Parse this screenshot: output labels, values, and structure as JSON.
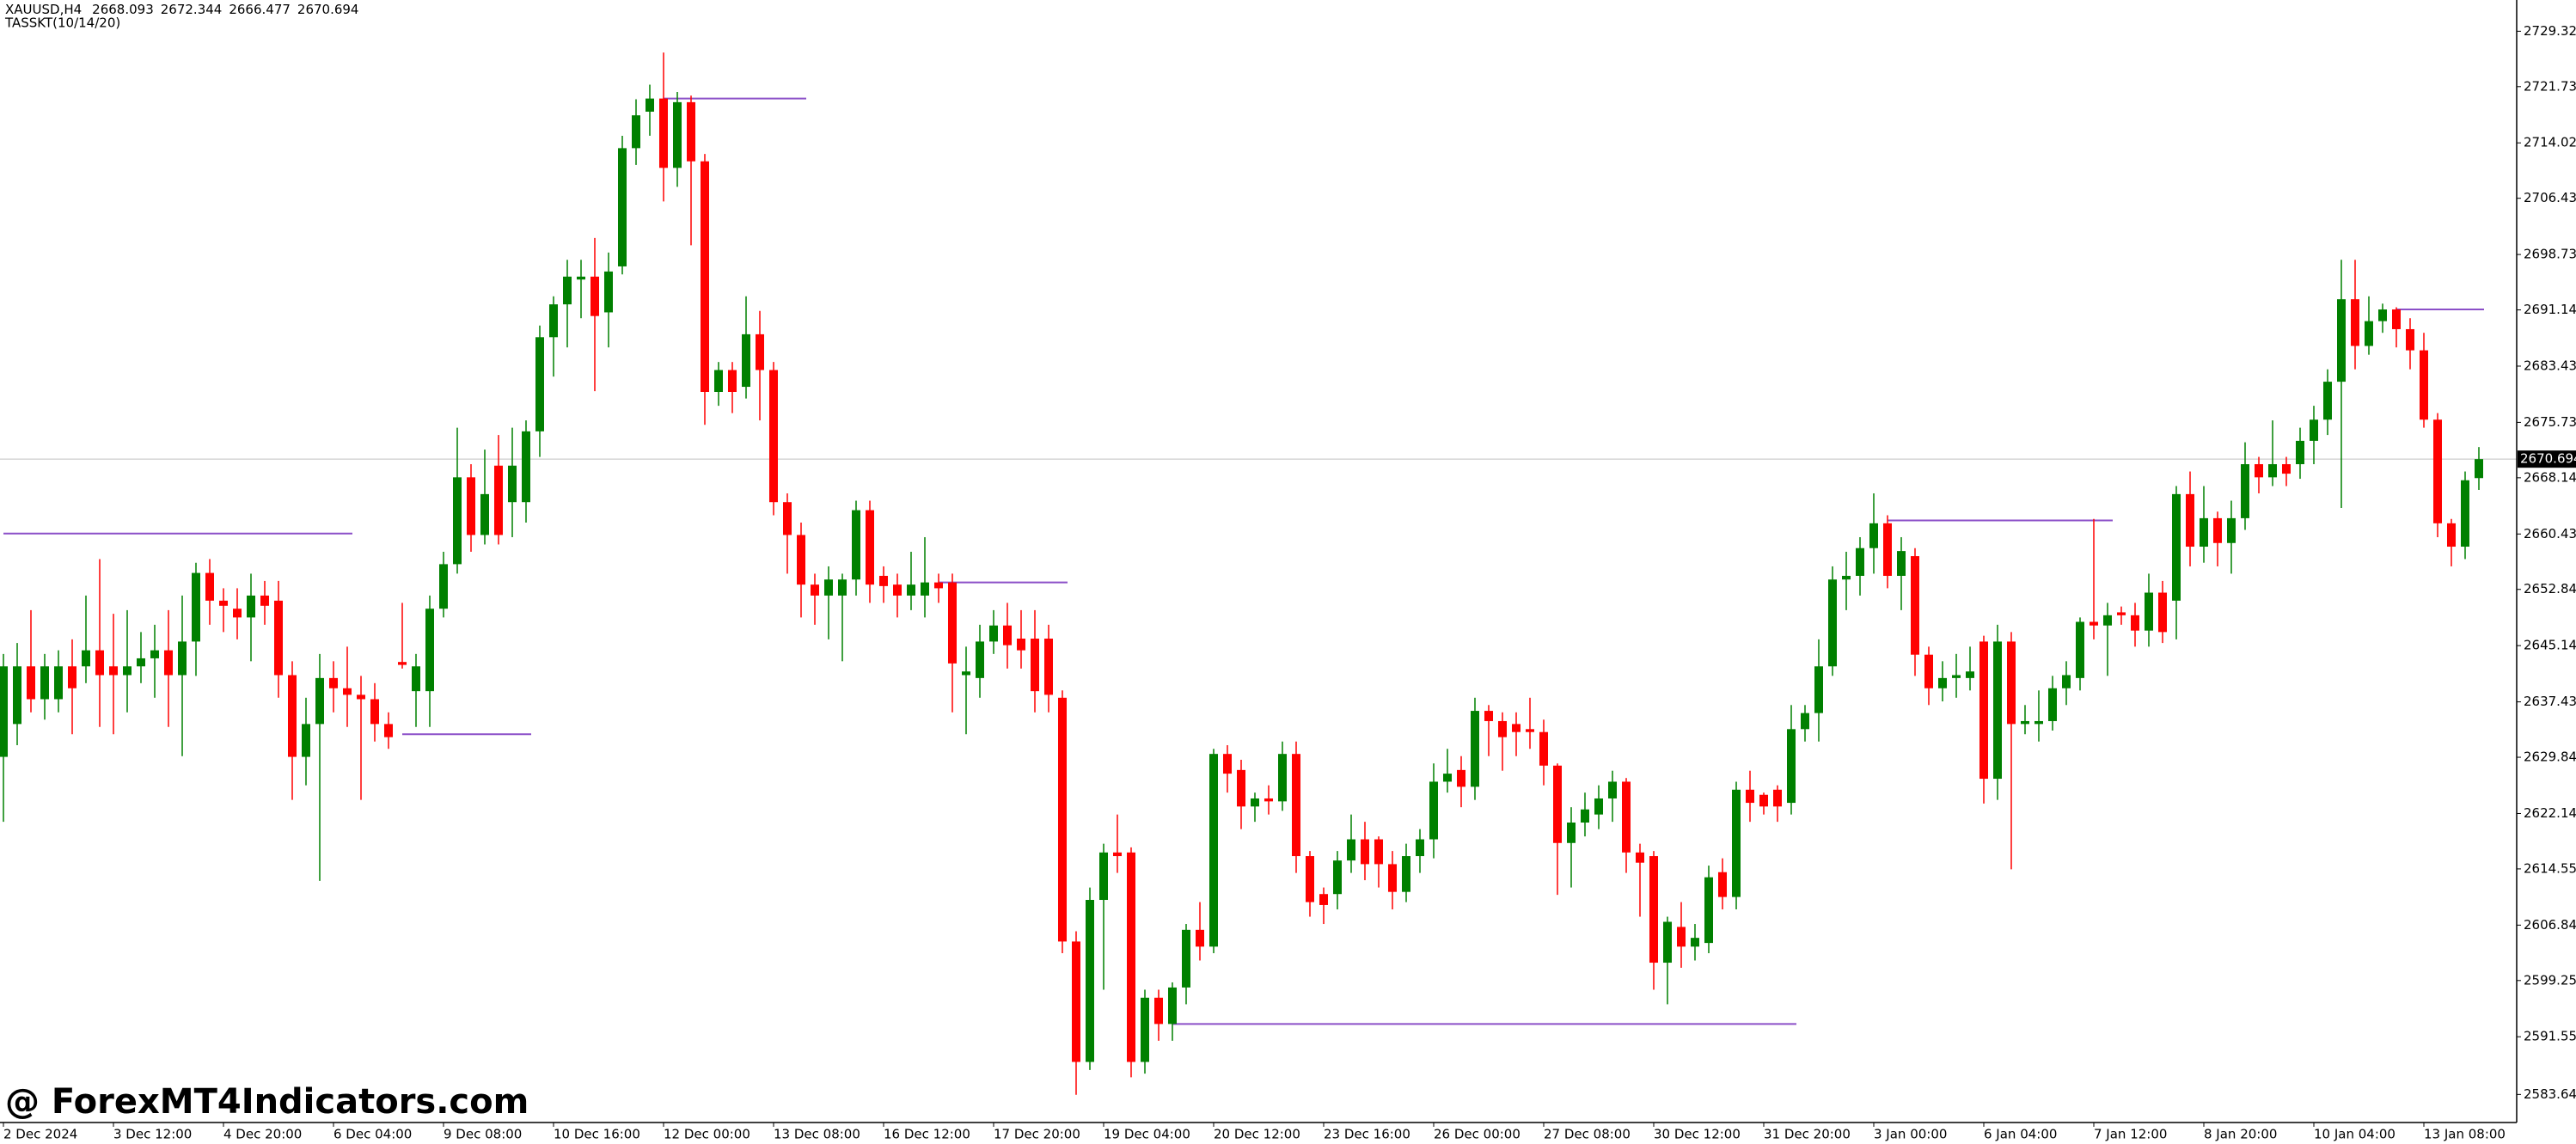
{
  "chart_data": {
    "type": "candlestick",
    "symbol": "XAUUSD,H4",
    "indicator": "TASSKT(10/14/20)",
    "watermark": "@ ForexMT4Indicators.com",
    "up_color": "#008000",
    "down_color": "#ff0000",
    "level_color": "#8b4fc8",
    "bid_line_color": "#c0c0c0",
    "ylim": [
      2579.8,
      2733.6
    ],
    "yticks": [
      {
        "value": 2729.32,
        "label": "2729.320"
      },
      {
        "value": 2721.73,
        "label": "2721.730"
      },
      {
        "value": 2714.025,
        "label": "2714.025"
      },
      {
        "value": 2706.435,
        "label": "2706.435"
      },
      {
        "value": 2698.73,
        "label": "2698.730"
      },
      {
        "value": 2691.14,
        "label": "2691.140"
      },
      {
        "value": 2683.435,
        "label": "2683.435"
      },
      {
        "value": 2675.73,
        "label": "2675.730"
      },
      {
        "value": 2668.14,
        "label": "2668.140"
      },
      {
        "value": 2660.435,
        "label": "2660.435"
      },
      {
        "value": 2652.845,
        "label": "2652.845"
      },
      {
        "value": 2645.14,
        "label": "2645.140"
      },
      {
        "value": 2637.435,
        "label": "2637.435"
      },
      {
        "value": 2629.845,
        "label": "2629.845"
      },
      {
        "value": 2622.14,
        "label": "2622.140"
      },
      {
        "value": 2614.55,
        "label": "2614.550"
      },
      {
        "value": 2606.845,
        "label": "2606.845"
      },
      {
        "value": 2599.255,
        "label": "2599.255"
      },
      {
        "value": 2591.55,
        "label": "2591.550"
      },
      {
        "value": 2583.645,
        "label": "2583.645"
      }
    ],
    "categories": [
      "2 Dec 2024",
      null,
      null,
      null,
      null,
      null,
      null,
      null,
      "3 Dec 12:00",
      null,
      null,
      null,
      null,
      null,
      null,
      null,
      "4 Dec 20:00",
      null,
      null,
      null,
      null,
      null,
      null,
      null,
      "6 Dec 04:00",
      null,
      null,
      null,
      null,
      null,
      null,
      null,
      "9 Dec 08:00",
      null,
      null,
      null,
      null,
      null,
      null,
      null,
      "10 Dec 16:00",
      null,
      null,
      null,
      null,
      null,
      null,
      null,
      "12 Dec 00:00",
      null,
      null,
      null,
      null,
      null,
      null,
      null,
      "13 Dec 08:00",
      null,
      null,
      null,
      null,
      null,
      null,
      null,
      "16 Dec 12:00",
      null,
      null,
      null,
      null,
      null,
      null,
      null,
      "17 Dec 20:00",
      null,
      null,
      null,
      null,
      null,
      null,
      null,
      "19 Dec 04:00",
      null,
      null,
      null,
      null,
      null,
      null,
      null,
      "20 Dec 12:00",
      null,
      null,
      null,
      null,
      null,
      null,
      null,
      "23 Dec 16:00",
      null,
      null,
      null,
      null,
      null,
      null,
      null,
      "26 Dec 00:00",
      null,
      null,
      null,
      null,
      null,
      null,
      null,
      "27 Dec 08:00",
      null,
      null,
      null,
      null,
      null,
      null,
      null,
      "30 Dec 12:00",
      null,
      null,
      null,
      null,
      null,
      null,
      null,
      "31 Dec 20:00",
      null,
      null,
      null,
      null,
      null,
      null,
      null,
      "3 Jan 00:00",
      null,
      null,
      null,
      null,
      null,
      null,
      null,
      "6 Jan 04:00",
      null,
      null,
      null,
      null,
      null,
      null,
      null,
      "7 Jan 12:00",
      null,
      null,
      null,
      null,
      null,
      null,
      null,
      "8 Jan 20:00",
      null,
      null,
      null,
      null,
      null,
      null,
      null,
      "10 Jan 04:00",
      null,
      null,
      null,
      null,
      null,
      null,
      null,
      "13 Jan 08:00",
      null,
      null,
      null,
      null
    ],
    "candles": [
      [
        2629.9,
        2644,
        2621,
        2642.3
      ],
      [
        2634.4,
        2645.5,
        2631.5,
        2642.3
      ],
      [
        2642.3,
        2650,
        2636,
        2637.8
      ],
      [
        2637.8,
        2644,
        2635,
        2642.3
      ],
      [
        2637.8,
        2644.5,
        2636,
        2642.3
      ],
      [
        2642.3,
        2646,
        2633,
        2639.3
      ],
      [
        2642.3,
        2652,
        2640,
        2644.5
      ],
      [
        2644.5,
        2657,
        2634,
        2641.1
      ],
      [
        2642.3,
        2649.5,
        2633,
        2641.1
      ],
      [
        2641.1,
        2650,
        2636,
        2642.3
      ],
      [
        2642.3,
        2647,
        2640,
        2643.4
      ],
      [
        2643.4,
        2648,
        2638,
        2644.5
      ],
      [
        2644.5,
        2650,
        2634,
        2641.1
      ],
      [
        2641.1,
        2652,
        2630,
        2645.7
      ],
      [
        2645.7,
        2656.5,
        2641,
        2655.1
      ],
      [
        2655.1,
        2657,
        2648,
        2651.3
      ],
      [
        2651.3,
        2653,
        2647,
        2650.6
      ],
      [
        2650.2,
        2653,
        2646,
        2649.0
      ],
      [
        2649.0,
        2655,
        2643,
        2652.0
      ],
      [
        2652.0,
        2654,
        2648,
        2650.6
      ],
      [
        2651.3,
        2654,
        2638,
        2641.1
      ],
      [
        2641.1,
        2643,
        2624,
        2629.9
      ],
      [
        2629.9,
        2638,
        2626,
        2634.4
      ],
      [
        2634.4,
        2644,
        2612.9,
        2640.7
      ],
      [
        2640.7,
        2643,
        2636,
        2639.3
      ],
      [
        2639.3,
        2645,
        2634,
        2638.4
      ],
      [
        2638.4,
        2641,
        2624,
        2637.8
      ],
      [
        2637.8,
        2640,
        2632,
        2634.4
      ],
      [
        2634.4,
        2636,
        2631,
        2632.6
      ],
      [
        2642.9,
        2651,
        2642,
        2642.5
      ],
      [
        2638.9,
        2644,
        2634,
        2642.3
      ],
      [
        2638.9,
        2652,
        2634,
        2650.2
      ],
      [
        2650.2,
        2658,
        2649,
        2656.3
      ],
      [
        2656.3,
        2675,
        2655,
        2668.2
      ],
      [
        2668.2,
        2670,
        2658,
        2660.3
      ],
      [
        2660.3,
        2672,
        2659,
        2665.9
      ],
      [
        2669.8,
        2674,
        2659,
        2660.3
      ],
      [
        2664.8,
        2675,
        2660,
        2669.8
      ],
      [
        2664.8,
        2676,
        2662,
        2674.5
      ],
      [
        2674.5,
        2689,
        2671,
        2687.4
      ],
      [
        2687.4,
        2693,
        2682,
        2691.9
      ],
      [
        2691.9,
        2698,
        2686,
        2695.7
      ],
      [
        2695.3,
        2698,
        2690,
        2695.7
      ],
      [
        2695.7,
        2701,
        2680,
        2690.3
      ],
      [
        2690.8,
        2699,
        2686,
        2696.4
      ],
      [
        2697.1,
        2715,
        2696,
        2713.3
      ],
      [
        2713.3,
        2720,
        2711,
        2717.8
      ],
      [
        2718.3,
        2722,
        2715,
        2720.1
      ],
      [
        2720.1,
        2726.4,
        2706,
        2710.6
      ],
      [
        2710.6,
        2721,
        2708,
        2719.6
      ],
      [
        2719.6,
        2720.5,
        2700,
        2711.5
      ],
      [
        2711.5,
        2712.5,
        2675.4,
        2679.9
      ],
      [
        2679.9,
        2684,
        2678,
        2682.9
      ],
      [
        2682.9,
        2684,
        2677,
        2679.9
      ],
      [
        2680.6,
        2693,
        2679,
        2687.8
      ],
      [
        2687.8,
        2691,
        2676,
        2682.9
      ],
      [
        2682.9,
        2684,
        2663,
        2664.8
      ],
      [
        2664.8,
        2666,
        2655,
        2660.3
      ],
      [
        2660.3,
        2662,
        2649,
        2653.5
      ],
      [
        2653.5,
        2655,
        2648,
        2652.0
      ],
      [
        2652.0,
        2656,
        2646,
        2654.2
      ],
      [
        2652.0,
        2655,
        2643,
        2654.2
      ],
      [
        2654.2,
        2665,
        2652,
        2663.7
      ],
      [
        2663.7,
        2665,
        2651,
        2653.5
      ],
      [
        2654.7,
        2656,
        2651,
        2653.3
      ],
      [
        2653.5,
        2655,
        2649,
        2652.0
      ],
      [
        2652.0,
        2658,
        2650,
        2653.5
      ],
      [
        2652.0,
        2660,
        2649,
        2653.8
      ],
      [
        2653.8,
        2655,
        2651,
        2653.0
      ],
      [
        2653.8,
        2655,
        2636,
        2642.7
      ],
      [
        2641.1,
        2645,
        2633,
        2641.6
      ],
      [
        2640.7,
        2648,
        2638,
        2645.7
      ],
      [
        2645.7,
        2650,
        2644,
        2647.9
      ],
      [
        2647.9,
        2651,
        2642,
        2645.2
      ],
      [
        2646.1,
        2650,
        2642,
        2644.5
      ],
      [
        2646.1,
        2650,
        2636,
        2638.9
      ],
      [
        2646.1,
        2648,
        2636,
        2638.4
      ],
      [
        2638.0,
        2639,
        2603,
        2604.6
      ],
      [
        2604.6,
        2606,
        2583.6,
        2588.1
      ],
      [
        2588.1,
        2612,
        2587,
        2610.3
      ],
      [
        2610.3,
        2618,
        2598,
        2616.8
      ],
      [
        2616.8,
        2622,
        2614,
        2616.3
      ],
      [
        2616.8,
        2617.5,
        2586,
        2588.1
      ],
      [
        2588.1,
        2598,
        2586.5,
        2596.9
      ],
      [
        2596.9,
        2598,
        2591,
        2593.3
      ],
      [
        2593.3,
        2599,
        2591,
        2598.3
      ],
      [
        2598.3,
        2607,
        2596,
        2606.2
      ],
      [
        2606.2,
        2610,
        2602,
        2603.9
      ],
      [
        2603.9,
        2631,
        2603,
        2630.3
      ],
      [
        2630.3,
        2631.5,
        2625,
        2627.6
      ],
      [
        2628.1,
        2629.5,
        2620,
        2623.1
      ],
      [
        2623.1,
        2625,
        2621,
        2624.2
      ],
      [
        2624.2,
        2626,
        2622,
        2623.8
      ],
      [
        2623.8,
        2632,
        2622.5,
        2630.3
      ],
      [
        2630.3,
        2632,
        2614,
        2616.3
      ],
      [
        2616.3,
        2617,
        2608,
        2610.0
      ],
      [
        2611.1,
        2612,
        2607,
        2609.6
      ],
      [
        2611.1,
        2617,
        2609,
        2615.7
      ],
      [
        2615.7,
        2622,
        2614,
        2618.6
      ],
      [
        2618.6,
        2621,
        2613,
        2615.2
      ],
      [
        2618.6,
        2619,
        2612,
        2615.2
      ],
      [
        2615.2,
        2617,
        2609,
        2611.4
      ],
      [
        2611.4,
        2618,
        2610,
        2616.3
      ],
      [
        2616.3,
        2620,
        2614,
        2618.6
      ],
      [
        2618.6,
        2629,
        2616,
        2626.5
      ],
      [
        2626.5,
        2631,
        2625,
        2627.6
      ],
      [
        2628.1,
        2630,
        2623,
        2625.8
      ],
      [
        2625.8,
        2638,
        2624,
        2636.2
      ],
      [
        2636.2,
        2637,
        2630,
        2634.8
      ],
      [
        2634.8,
        2636,
        2628,
        2632.6
      ],
      [
        2634.4,
        2636,
        2630,
        2633.3
      ],
      [
        2633.7,
        2638,
        2631,
        2633.3
      ],
      [
        2633.3,
        2635,
        2626,
        2628.7
      ],
      [
        2628.7,
        2629,
        2611,
        2618.1
      ],
      [
        2618.1,
        2623,
        2612,
        2620.9
      ],
      [
        2620.9,
        2625,
        2619,
        2622.7
      ],
      [
        2622.0,
        2626,
        2620,
        2624.2
      ],
      [
        2624.2,
        2628,
        2621,
        2626.5
      ],
      [
        2626.5,
        2627,
        2614,
        2616.8
      ],
      [
        2616.8,
        2618,
        2608,
        2615.4
      ],
      [
        2616.3,
        2617,
        2598,
        2601.7
      ],
      [
        2601.7,
        2608,
        2596,
        2607.3
      ],
      [
        2606.6,
        2610,
        2601,
        2603.9
      ],
      [
        2603.9,
        2607,
        2602,
        2605.1
      ],
      [
        2604.4,
        2615,
        2603,
        2613.4
      ],
      [
        2614.1,
        2616,
        2609,
        2610.7
      ],
      [
        2610.7,
        2626.5,
        2609,
        2625.4
      ],
      [
        2625.4,
        2628,
        2621,
        2623.6
      ],
      [
        2624.7,
        2625,
        2622,
        2623.1
      ],
      [
        2625.4,
        2626,
        2621,
        2623.1
      ],
      [
        2623.6,
        2637,
        2622,
        2633.7
      ],
      [
        2633.7,
        2637,
        2632,
        2635.9
      ],
      [
        2635.9,
        2646,
        2632,
        2642.3
      ],
      [
        2642.3,
        2656,
        2641,
        2654.2
      ],
      [
        2654.2,
        2658,
        2650,
        2654.7
      ],
      [
        2654.7,
        2660,
        2652,
        2658.5
      ],
      [
        2658.5,
        2666,
        2655,
        2661.9
      ],
      [
        2661.9,
        2663,
        2653,
        2654.7
      ],
      [
        2654.7,
        2660,
        2650,
        2658.1
      ],
      [
        2657.4,
        2658.5,
        2641,
        2643.9
      ],
      [
        2643.9,
        2645,
        2637,
        2639.3
      ],
      [
        2639.3,
        2643,
        2637.5,
        2640.7
      ],
      [
        2640.7,
        2644,
        2638,
        2641.1
      ],
      [
        2640.7,
        2645,
        2639,
        2641.6
      ],
      [
        2645.7,
        2646.5,
        2623.5,
        2626.9
      ],
      [
        2626.9,
        2648,
        2624,
        2645.7
      ],
      [
        2645.7,
        2647,
        2614.5,
        2634.4
      ],
      [
        2634.4,
        2637,
        2633,
        2634.8
      ],
      [
        2634.4,
        2639,
        2632,
        2634.8
      ],
      [
        2634.8,
        2641,
        2633.5,
        2639.3
      ],
      [
        2639.3,
        2643,
        2637,
        2641.1
      ],
      [
        2640.7,
        2649,
        2639,
        2648.4
      ],
      [
        2648.4,
        2662.5,
        2646,
        2647.9
      ],
      [
        2647.9,
        2651,
        2641,
        2649.3
      ],
      [
        2649.7,
        2650.5,
        2648,
        2649.3
      ],
      [
        2649.3,
        2651,
        2645,
        2647.2
      ],
      [
        2647.2,
        2655,
        2645,
        2652.4
      ],
      [
        2652.4,
        2654,
        2645.5,
        2647.0
      ],
      [
        2651.3,
        2667,
        2646,
        2665.9
      ],
      [
        2665.9,
        2669,
        2656,
        2658.7
      ],
      [
        2658.7,
        2667,
        2656.5,
        2662.6
      ],
      [
        2662.6,
        2663.5,
        2656,
        2659.2
      ],
      [
        2659.2,
        2665,
        2655,
        2662.6
      ],
      [
        2662.6,
        2673,
        2661,
        2670.0
      ],
      [
        2670.0,
        2671,
        2666,
        2668.2
      ],
      [
        2668.2,
        2676,
        2667,
        2670.0
      ],
      [
        2670.0,
        2671,
        2667,
        2668.7
      ],
      [
        2670.0,
        2675,
        2668,
        2673.2
      ],
      [
        2673.2,
        2678,
        2670,
        2676.1
      ],
      [
        2676.1,
        2683,
        2674,
        2681.3
      ],
      [
        2681.3,
        2698.0,
        2664,
        2692.6
      ],
      [
        2692.6,
        2698,
        2683,
        2686.2
      ],
      [
        2686.2,
        2693,
        2685,
        2689.6
      ],
      [
        2689.6,
        2692,
        2688,
        2691.2
      ],
      [
        2691.2,
        2691.5,
        2686,
        2688.5
      ],
      [
        2688.5,
        2690,
        2683,
        2685.6
      ],
      [
        2685.6,
        2688,
        2675,
        2676.1
      ],
      [
        2676.1,
        2677,
        2660,
        2661.9
      ],
      [
        2661.9,
        2662.5,
        2656,
        2658.7
      ],
      [
        2658.7,
        2669,
        2657,
        2667.8
      ],
      [
        2668.093,
        2672.344,
        2666.477,
        2670.694
      ]
    ],
    "levels": [
      {
        "value": 2660.5,
        "start": 0,
        "end": 25
      },
      {
        "value": 2633.0,
        "start": 29,
        "end": 38
      },
      {
        "value": 2720.1,
        "start": 48,
        "end": 58
      },
      {
        "value": 2653.8,
        "start": 68,
        "end": 77
      },
      {
        "value": 2593.3,
        "start": 85,
        "end": 130
      },
      {
        "value": 2662.3,
        "start": 137,
        "end": 153
      },
      {
        "value": 2691.2,
        "start": 174,
        "end": 180
      }
    ]
  }
}
